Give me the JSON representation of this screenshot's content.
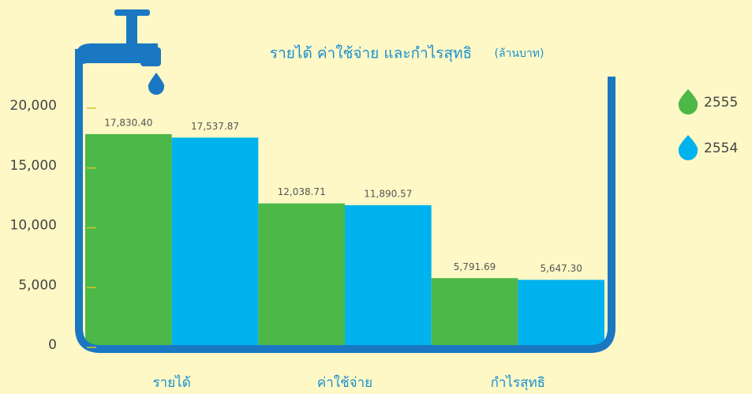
{
  "chart_data": {
    "type": "bar",
    "title": "รายได้ ค่าใช้จ่าย และกำไรสุทธิ",
    "subtitle": "(ล้านบาท)",
    "categories": [
      "รายได้",
      "ค่าใช้จ่าย",
      "กำไรสุทธิ"
    ],
    "series": [
      {
        "name": "2555",
        "color": "#4cb848",
        "values": [
          17830.4,
          12038.71,
          5791.69
        ],
        "value_labels": [
          "17,830.40",
          "12,038.71",
          "5,791.69"
        ]
      },
      {
        "name": "2554",
        "color": "#00b2ee",
        "values": [
          17537.87,
          11890.57,
          5647.3
        ],
        "value_labels": [
          "17,537.87",
          "11,890.57",
          "5,647.30"
        ]
      }
    ],
    "ylim": [
      0,
      20000
    ],
    "yticks": [
      0,
      {
        "value": 5000,
        "label": "5,000"
      },
      {
        "value": 10000,
        "label": "10,000"
      },
      {
        "value": 15000,
        "label": "15,000"
      },
      {
        "value": 20000,
        "label": "20,000"
      }
    ],
    "legend": "right"
  }
}
